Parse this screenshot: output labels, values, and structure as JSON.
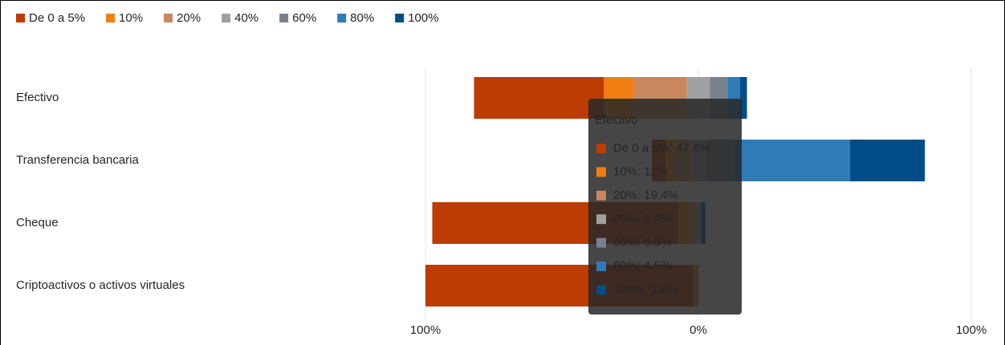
{
  "chart_data": {
    "type": "bar",
    "diverging": true,
    "neutral": "40%",
    "categories": [
      "Efectivo",
      "Transferencia bancaria",
      "Cheque",
      "Criptoactivos o activos virtuales"
    ],
    "series": [
      {
        "name": "De 0 a 5%",
        "color": "#bc3c03",
        "values": [
          47.6,
          5,
          90,
          98
        ]
      },
      {
        "name": "10%",
        "color": "#f07e12",
        "values": [
          11,
          3,
          4,
          1
        ]
      },
      {
        "name": "20%",
        "color": "#c8875f",
        "values": [
          19.4,
          6,
          3,
          1
        ]
      },
      {
        "name": "40%",
        "color": "#a0a0a0",
        "values": [
          8.4,
          6,
          1,
          0
        ]
      },
      {
        "name": "60%",
        "color": "#76808f",
        "values": [
          6.5,
          10,
          0.5,
          0
        ]
      },
      {
        "name": "80%",
        "color": "#2e7bb6",
        "values": [
          4.5,
          42.6,
          0.5,
          0
        ]
      },
      {
        "name": "100%",
        "color": "#004c86",
        "values": [
          2.6,
          27.4,
          1,
          0
        ]
      }
    ],
    "xlim": [
      -100,
      100
    ],
    "xticks": [
      {
        "value": -100,
        "label": "100%"
      },
      {
        "value": 0,
        "label": "0%"
      },
      {
        "value": 100,
        "label": "100%"
      }
    ],
    "grid": true,
    "legend": "top-left",
    "tooltip": {
      "title": "Efectivo",
      "items": [
        "De 0 a 5%: 47.6%",
        "10%: 11%",
        "20%: 19.4%",
        "40%: 8.4%",
        "60%: 6.5%",
        "80%: 4.5%",
        "100%: 2.6%"
      ]
    }
  }
}
